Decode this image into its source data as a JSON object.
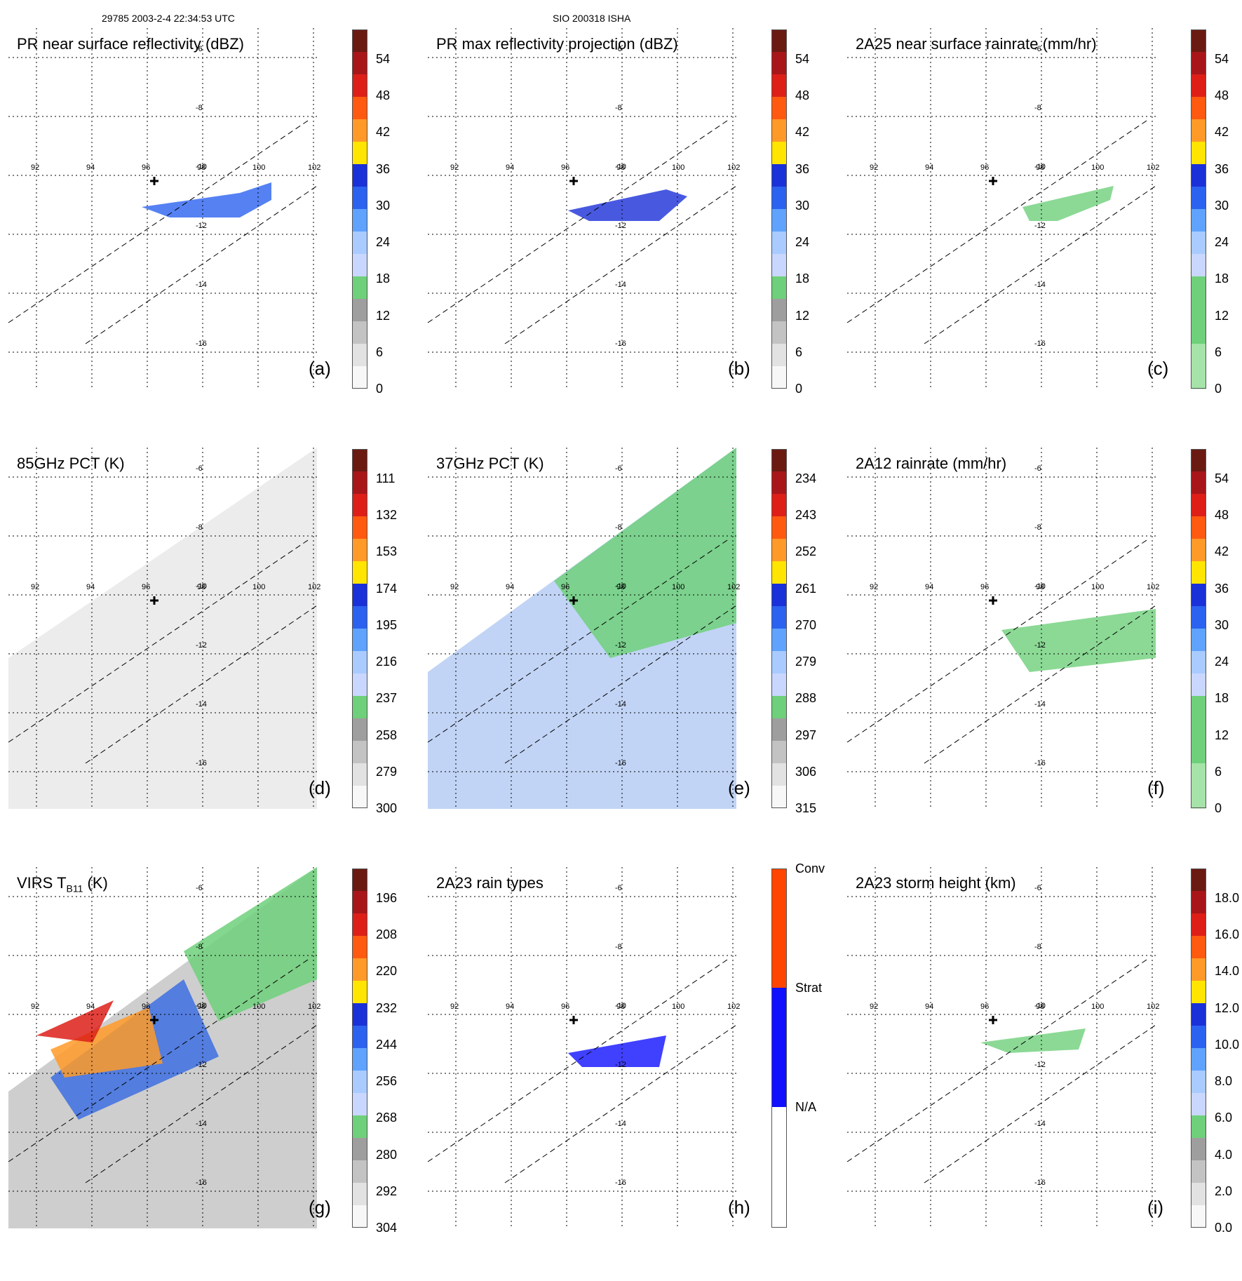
{
  "header": {
    "left": "29785 2003-2-4 22:34:53 UTC",
    "center": "SIO 200318 ISHA"
  },
  "colors": {
    "grid": "#000000",
    "swath": "#000000",
    "storm_center": "#000000",
    "rain_types": {
      "Conv": "#ff4500",
      "Strat": "#1010ff",
      "N/A": "#ffffff"
    }
  },
  "map": {
    "longitudes": [
      "92",
      "94",
      "96",
      "98",
      "100",
      "102"
    ],
    "latitudes": [
      "-6",
      "-8",
      "-10",
      "-12",
      "-14",
      "-16"
    ]
  },
  "panels": [
    {
      "id": "a",
      "title_main": "PR near surface reflectivity (dBZ)",
      "title_sub": "",
      "title_end": "",
      "label": "(a)",
      "colorbar": {
        "ticks": [
          "54",
          "48",
          "42",
          "36",
          "30",
          "24",
          "18",
          "12",
          "6",
          "0"
        ],
        "colors": [
          "#6b1a12",
          "#a8161a",
          "#dd1f18",
          "#ff5a10",
          "#ff9a28",
          "#ffe500",
          "#1a30d8",
          "#2b62f0",
          "#5fa3ff",
          "#a9cbff",
          "#c9d7ff",
          "#6ed07a",
          "#9e9e9e",
          "#c3c3c3",
          "#e2e2e2",
          "#f7f7f7"
        ]
      }
    },
    {
      "id": "b",
      "title_main": "PR max reflectivity projection (dBZ)",
      "title_sub": "",
      "title_end": "",
      "label": "(b)",
      "colorbar": {
        "ticks": [
          "54",
          "48",
          "42",
          "36",
          "30",
          "24",
          "18",
          "12",
          "6",
          "0"
        ],
        "colors": [
          "#6b1a12",
          "#a8161a",
          "#dd1f18",
          "#ff5a10",
          "#ff9a28",
          "#ffe500",
          "#1a30d8",
          "#2b62f0",
          "#5fa3ff",
          "#a9cbff",
          "#c9d7ff",
          "#6ed07a",
          "#9e9e9e",
          "#c3c3c3",
          "#e2e2e2",
          "#f7f7f7"
        ]
      }
    },
    {
      "id": "c",
      "title_main": "2A25 near surface rainrate (mm/hr)",
      "title_sub": "",
      "title_end": "",
      "label": "(c)",
      "colorbar": {
        "ticks": [
          "54",
          "48",
          "42",
          "36",
          "30",
          "24",
          "18",
          "12",
          "6",
          "0"
        ],
        "colors": [
          "#6b1a12",
          "#a8161a",
          "#dd1f18",
          "#ff5a10",
          "#ff9a28",
          "#ffe500",
          "#1a30d8",
          "#2b62f0",
          "#5fa3ff",
          "#a9cbff",
          "#c9d7ff",
          "#6ed07a",
          "#6ed07a",
          "#6ed07a",
          "#a6e3a8",
          "#a6e3a8"
        ]
      }
    },
    {
      "id": "d",
      "title_main": "85GHz PCT (K)",
      "title_sub": "",
      "title_end": "",
      "label": "(d)",
      "colorbar": {
        "ticks": [
          "111",
          "132",
          "153",
          "174",
          "195",
          "216",
          "237",
          "258",
          "279",
          "300"
        ],
        "colors": [
          "#6b1a12",
          "#a8161a",
          "#dd1f18",
          "#ff5a10",
          "#ff9a28",
          "#ffe500",
          "#1a30d8",
          "#2b62f0",
          "#5fa3ff",
          "#a9cbff",
          "#c9d7ff",
          "#6ed07a",
          "#9e9e9e",
          "#c3c3c3",
          "#e2e2e2",
          "#f7f7f7"
        ]
      }
    },
    {
      "id": "e",
      "title_main": "37GHz PCT (K)",
      "title_sub": "",
      "title_end": "",
      "label": "(e)",
      "colorbar": {
        "ticks": [
          "234",
          "243",
          "252",
          "261",
          "270",
          "279",
          "288",
          "297",
          "306",
          "315"
        ],
        "colors": [
          "#6b1a12",
          "#a8161a",
          "#dd1f18",
          "#ff5a10",
          "#ff9a28",
          "#ffe500",
          "#1a30d8",
          "#2b62f0",
          "#5fa3ff",
          "#a9cbff",
          "#c9d7ff",
          "#6ed07a",
          "#9e9e9e",
          "#c3c3c3",
          "#e2e2e2",
          "#f7f7f7"
        ]
      }
    },
    {
      "id": "f",
      "title_main": "2A12 rainrate (mm/hr)",
      "title_sub": "",
      "title_end": "",
      "label": "(f)",
      "colorbar": {
        "ticks": [
          "54",
          "48",
          "42",
          "36",
          "30",
          "24",
          "18",
          "12",
          "6",
          "0"
        ],
        "colors": [
          "#6b1a12",
          "#a8161a",
          "#dd1f18",
          "#ff5a10",
          "#ff9a28",
          "#ffe500",
          "#1a30d8",
          "#2b62f0",
          "#5fa3ff",
          "#a9cbff",
          "#c9d7ff",
          "#6ed07a",
          "#6ed07a",
          "#6ed07a",
          "#a6e3a8",
          "#a6e3a8"
        ]
      }
    },
    {
      "id": "g",
      "title_main": "VIRS T",
      "title_sub": "B11",
      "title_end": " (K)",
      "label": "(g)",
      "colorbar": {
        "ticks": [
          "196",
          "208",
          "220",
          "232",
          "244",
          "256",
          "268",
          "280",
          "292",
          "304"
        ],
        "colors": [
          "#6b1a12",
          "#a8161a",
          "#dd1f18",
          "#ff5a10",
          "#ff9a28",
          "#ffe500",
          "#1a30d8",
          "#2b62f0",
          "#5fa3ff",
          "#a9cbff",
          "#c9d7ff",
          "#6ed07a",
          "#9e9e9e",
          "#c3c3c3",
          "#e2e2e2",
          "#f7f7f7"
        ]
      }
    },
    {
      "id": "h",
      "title_main": "2A23 rain types",
      "title_sub": "",
      "title_end": "",
      "label": "(h)",
      "colorbar": {
        "ticks": [
          "Conv",
          "Strat",
          "N/A"
        ],
        "colors": []
      }
    },
    {
      "id": "i",
      "title_main": "2A23 storm height (km)",
      "title_sub": "",
      "title_end": "",
      "label": "(i)",
      "colorbar": {
        "ticks": [
          "18.0",
          "16.0",
          "14.0",
          "12.0",
          "10.0",
          "8.0",
          "6.0",
          "4.0",
          "2.0",
          "0.0"
        ],
        "colors": [
          "#6b1a12",
          "#a8161a",
          "#dd1f18",
          "#ff5a10",
          "#ff9a28",
          "#ffe500",
          "#1a30d8",
          "#2b62f0",
          "#5fa3ff",
          "#a9cbff",
          "#c9d7ff",
          "#6ed07a",
          "#9e9e9e",
          "#c3c3c3",
          "#e2e2e2",
          "#f7f7f7"
        ]
      }
    }
  ]
}
